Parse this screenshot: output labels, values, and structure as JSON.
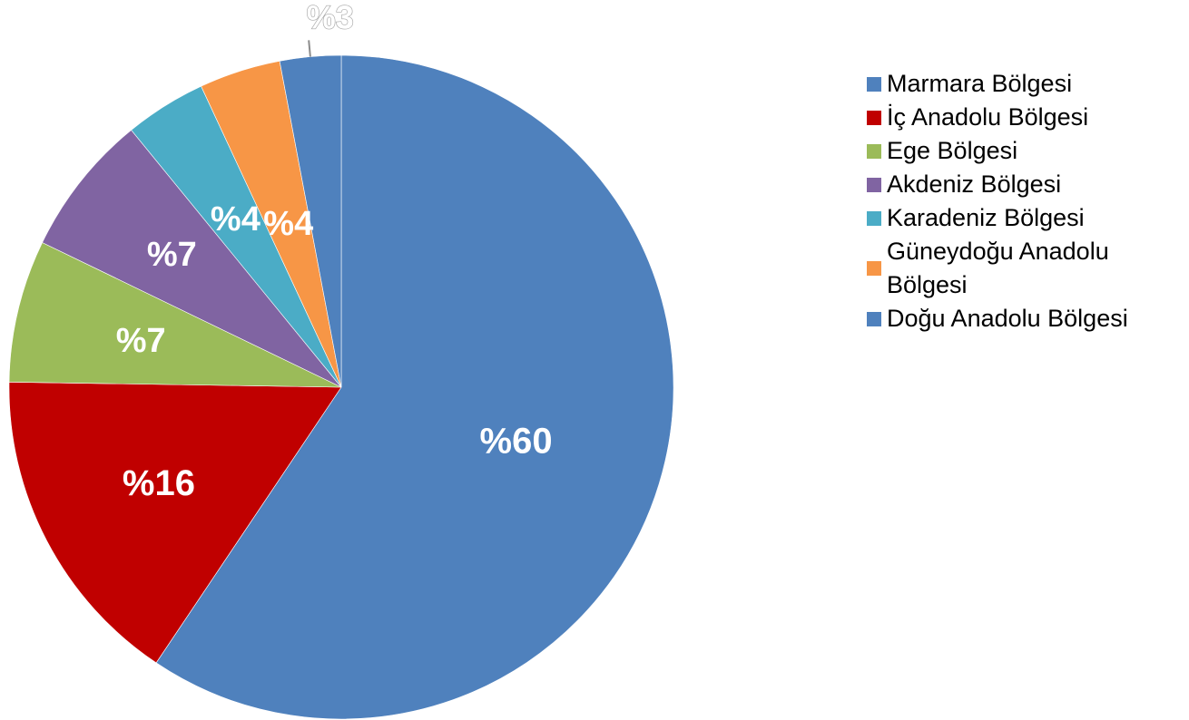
{
  "chart_data": {
    "type": "pie",
    "title": "",
    "categories": [
      "Marmara Bölgesi",
      "İç Anadolu Bölgesi",
      "Ege Bölgesi",
      "Akdeniz Bölgesi",
      "Karadeniz Bölgesi",
      "Güneydoğu Anadolu Bölgesi",
      "Doğu Anadolu Bölgesi"
    ],
    "values": [
      60,
      16,
      7,
      7,
      4,
      4,
      3
    ],
    "data_labels": [
      "%60",
      "%16",
      "%7",
      "%7",
      "%4",
      "%4",
      "%3"
    ],
    "colors": [
      "#4f81bd",
      "#c00000",
      "#9bbb59",
      "#8064a2",
      "#4bacc6",
      "#f79646",
      "#4f81bd"
    ],
    "start_angle_deg": 0,
    "direction": "clockwise",
    "legend_position": "right"
  },
  "legend": {
    "items": [
      {
        "label": "Marmara Bölgesi",
        "color": "#4f81bd"
      },
      {
        "label": "İç Anadolu Bölgesi",
        "color": "#c00000"
      },
      {
        "label": "Ege Bölgesi",
        "color": "#9bbb59"
      },
      {
        "label": "Akdeniz Bölgesi",
        "color": "#8064a2"
      },
      {
        "label": "Karadeniz Bölgesi",
        "color": "#4bacc6"
      },
      {
        "label": "Güneydoğu Anadolu Bölgesi",
        "color": "#f79646"
      },
      {
        "label": "Doğu Anadolu Bölgesi",
        "color": "#4f81bd"
      }
    ]
  }
}
